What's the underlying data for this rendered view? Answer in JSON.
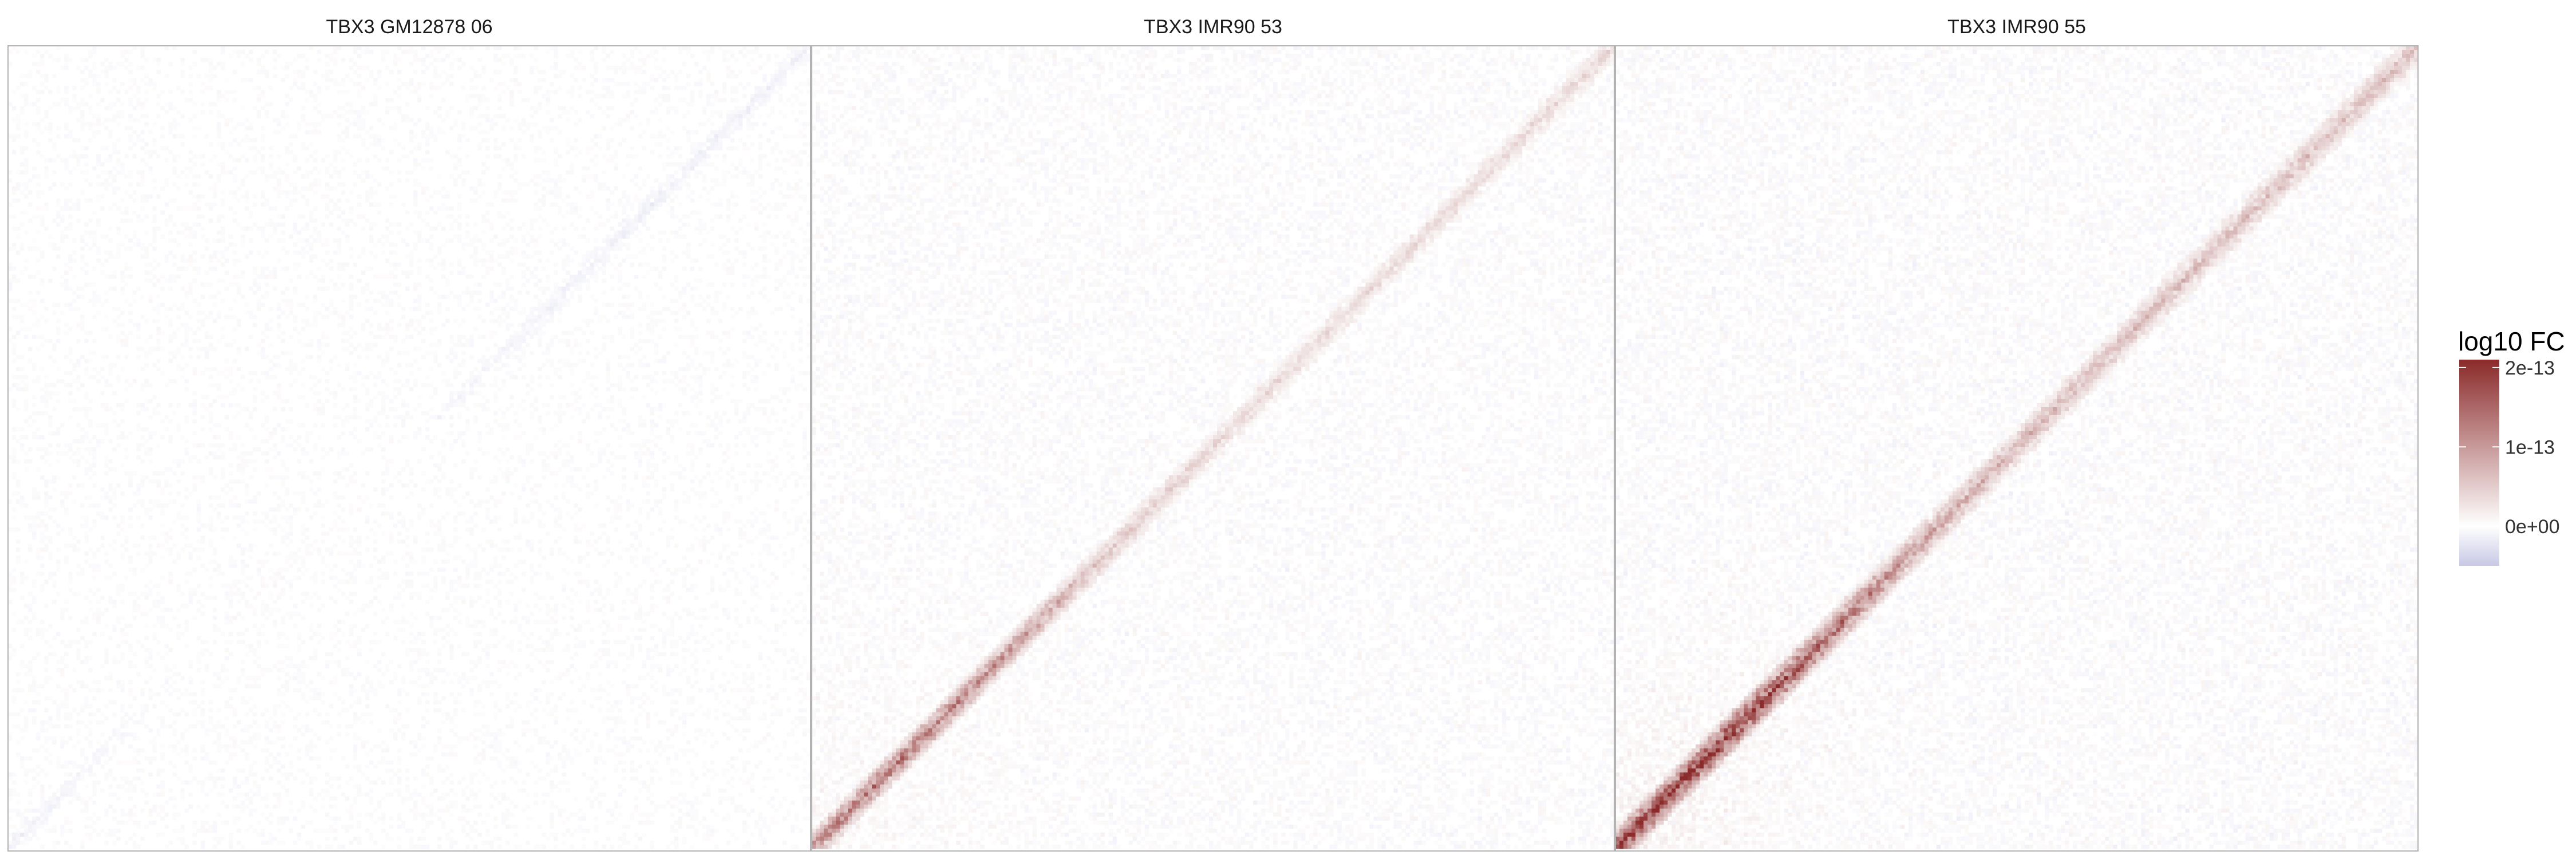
{
  "chart_data": {
    "type": "heatmap",
    "matrix_size": 200,
    "facets": [
      {
        "title": "TBX3 GM12878 06",
        "diagonal_mean_log10fc": -1.2e-14,
        "diagonal_max_log10fc": 4e-15,
        "peak_position": 0.35,
        "background_noise": 9e-15,
        "diagonal_spread": 3
      },
      {
        "title": "TBX3 IMR90 53",
        "diagonal_mean_log10fc": 3.5e-14,
        "diagonal_max_log10fc": 1.3e-13,
        "peak_position": 0.1,
        "background_noise": 1.4e-14,
        "diagonal_spread": 4
      },
      {
        "title": "TBX3 IMR90 55",
        "diagonal_mean_log10fc": 6e-14,
        "diagonal_max_log10fc": 2e-13,
        "peak_position": 0.1,
        "background_noise": 1.6e-14,
        "diagonal_spread": 5
      }
    ],
    "legend": {
      "title": "log10 FC",
      "position": "right",
      "range": [
        -5e-14,
        2.1e-13
      ],
      "ticks": [
        {
          "value": 2e-13,
          "label": "2e-13"
        },
        {
          "value": 1e-13,
          "label": "1e-13"
        },
        {
          "value": 0,
          "label": "0e+00"
        }
      ],
      "colors": {
        "low": "#c8c8e6",
        "mid": "#ffffff",
        "high": "#8b2a2a"
      }
    },
    "grid": false
  }
}
